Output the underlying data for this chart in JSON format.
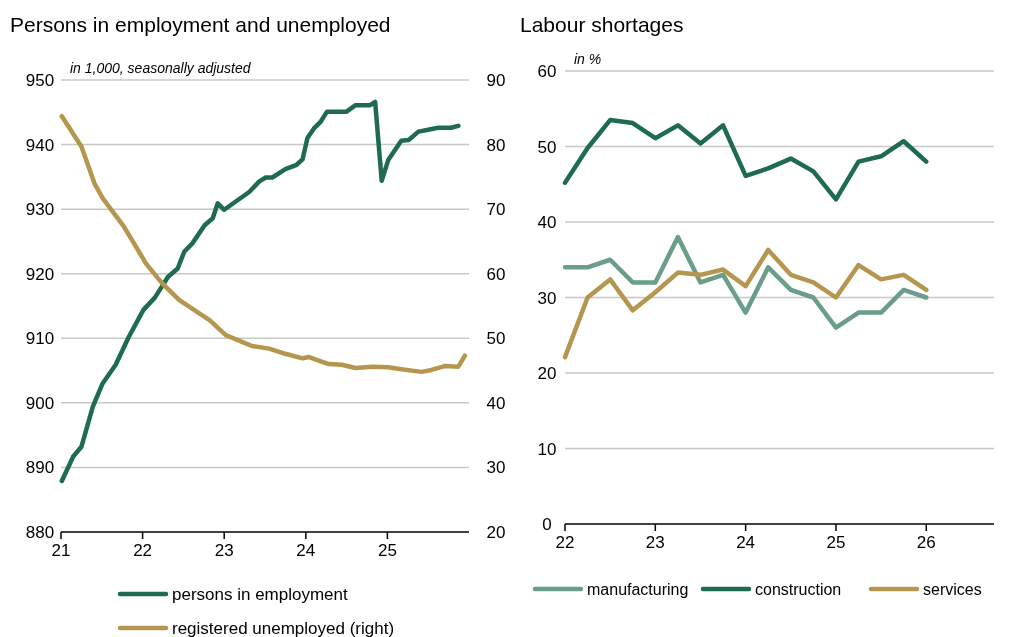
{
  "chart_data": [
    {
      "type": "line",
      "title": "Persons in employment and unemployed",
      "annotations": [
        "in 1,000, seasonally adjusted"
      ],
      "xlim": [
        21,
        26
      ],
      "xticks": [
        21,
        22,
        23,
        24,
        25
      ],
      "ylim": [
        880,
        950
      ],
      "yticks": [
        880,
        890,
        900,
        910,
        920,
        930,
        940,
        950
      ],
      "y2lim": [
        20,
        90
      ],
      "y2ticks": [
        20,
        30,
        40,
        50,
        60,
        70,
        80,
        90
      ],
      "grid": "y",
      "legend": "bottom",
      "line_style": "solid",
      "marker": "none",
      "series": [
        {
          "name": "persons in employment",
          "color": "#1f6b50",
          "x": [
            21.01,
            21.15,
            21.25,
            21.39,
            21.51,
            21.67,
            21.83,
            22.01,
            22.15,
            22.31,
            22.43,
            22.51,
            22.61,
            22.76,
            22.86,
            22.92,
            23.0,
            23.31,
            23.43,
            23.51,
            23.59,
            23.75,
            23.88,
            23.96,
            24.02,
            24.1,
            24.18,
            24.26,
            24.5,
            24.61,
            24.79,
            24.85,
            24.93,
            25.01,
            25.17,
            25.26,
            25.38,
            25.5,
            25.62,
            25.78,
            25.87
          ],
          "values": [
            887.9,
            891.7,
            893.2,
            899.4,
            903.0,
            905.9,
            910.2,
            914.4,
            916.3,
            919.5,
            920.8,
            923.4,
            924.7,
            927.5,
            928.6,
            930.9,
            929.9,
            932.7,
            934.3,
            934.9,
            934.9,
            936.2,
            936.8,
            937.7,
            941.0,
            942.5,
            943.5,
            945.1,
            945.1,
            946.1,
            946.1,
            946.6,
            934.4,
            937.6,
            940.6,
            940.7,
            942.0,
            942.3,
            942.6,
            942.6,
            942.9
          ]
        },
        {
          "name": "registered unemployed (right)",
          "color": "#b5964f",
          "axis": "y2",
          "x": [
            21.01,
            21.25,
            21.41,
            21.51,
            21.76,
            21.88,
            22.04,
            22.24,
            22.45,
            22.82,
            23.02,
            23.34,
            23.55,
            23.75,
            23.96,
            24.04,
            24.28,
            24.44,
            24.61,
            24.81,
            25.01,
            25.17,
            25.42,
            25.54,
            25.7,
            25.87,
            25.95
          ],
          "values": [
            84.4,
            79.7,
            74.0,
            71.7,
            67.5,
            65.0,
            61.6,
            58.5,
            55.9,
            52.8,
            50.5,
            48.8,
            48.4,
            47.6,
            46.9,
            47.1,
            46.0,
            45.9,
            45.4,
            45.6,
            45.5,
            45.2,
            44.8,
            45.1,
            45.7,
            45.6,
            47.3
          ]
        }
      ]
    },
    {
      "type": "line",
      "title": "Labour shortages",
      "annotations": [
        "in %"
      ],
      "xlim": [
        22,
        26.75
      ],
      "xticks": [
        22,
        23,
        24,
        25,
        26
      ],
      "ylim": [
        0,
        60
      ],
      "yticks": [
        0,
        10,
        20,
        30,
        40,
        50,
        60
      ],
      "grid": "y",
      "legend": "bottom",
      "line_style": "solid",
      "marker": "none",
      "x": [
        22,
        22.25,
        22.5,
        22.75,
        23,
        23.25,
        23.5,
        23.75,
        24,
        24.25,
        24.5,
        24.75,
        25,
        25.25,
        25.5,
        25.75,
        26
      ],
      "series": [
        {
          "name": "manufacturing",
          "color": "#6a9e88",
          "values": [
            34.0,
            34.0,
            35.0,
            32.0,
            32.0,
            38.0,
            32.0,
            33.0,
            28.0,
            34.0,
            31.0,
            30.0,
            26.0,
            28.0,
            28.0,
            31.0,
            30.0
          ]
        },
        {
          "name": "construction",
          "color": "#1f6b50",
          "values": [
            45.2,
            49.8,
            53.5,
            53.1,
            51.1,
            52.8,
            50.4,
            52.8,
            46.1,
            47.1,
            48.4,
            46.7,
            43.0,
            48.0,
            48.7,
            50.7,
            48.0
          ]
        },
        {
          "name": "services",
          "color": "#b5964f",
          "values": [
            22.1,
            30.0,
            32.4,
            28.3,
            30.7,
            33.3,
            33.0,
            33.7,
            31.5,
            36.3,
            33.0,
            32.0,
            30.0,
            34.3,
            32.4,
            33.0,
            31.0
          ]
        }
      ]
    }
  ]
}
